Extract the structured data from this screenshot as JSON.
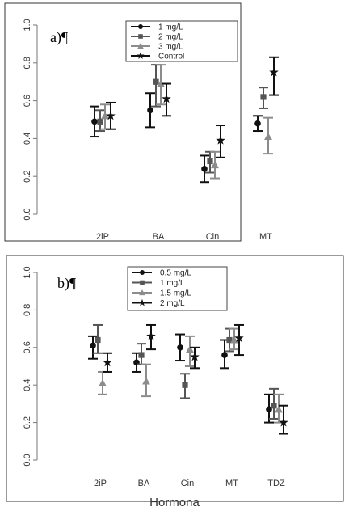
{
  "colors": {
    "black": "#111111",
    "dark_gray": "#555555",
    "light_gray": "#8c8c8c",
    "axis": "#777777",
    "frame": "#333333"
  },
  "chart_data": [
    {
      "type": "scatter",
      "subtype": "error-bar",
      "panel_label": "a)¶",
      "xlabel": "",
      "ylabel": "",
      "ylim": [
        0.0,
        1.0
      ],
      "y_ticks": [
        "0.0",
        "0.2",
        "0.4",
        "0.6",
        "0.8",
        "1.0"
      ],
      "categories": [
        "2iP",
        "BA",
        "Cin",
        "MT"
      ],
      "legend_position": "top-center",
      "grid": false,
      "series": [
        {
          "name": "1 mg/L",
          "marker": "circle",
          "color": "#111111",
          "values": [
            0.49,
            0.55,
            0.24,
            0.48
          ],
          "lower": [
            0.41,
            0.46,
            0.17,
            0.44
          ],
          "upper": [
            0.57,
            0.64,
            0.31,
            0.52
          ]
        },
        {
          "name": "2 mg/L",
          "marker": "square",
          "color": "#555555",
          "values": [
            0.49,
            0.7,
            0.28,
            0.62
          ],
          "lower": [
            0.44,
            0.57,
            0.22,
            0.56
          ],
          "upper": [
            0.55,
            0.79,
            0.33,
            0.67
          ]
        },
        {
          "name": "3 mg/L",
          "marker": "triangle",
          "color": "#8c8c8c",
          "values": [
            0.52,
            0.69,
            0.26,
            0.41
          ],
          "lower": [
            0.45,
            0.58,
            0.19,
            0.32
          ],
          "upper": [
            0.58,
            0.79,
            0.33,
            0.51
          ]
        },
        {
          "name": "Control",
          "marker": "star",
          "color": "#111111",
          "values": [
            0.52,
            0.61,
            0.39,
            0.75
          ],
          "lower": [
            0.45,
            0.52,
            0.3,
            0.63
          ],
          "upper": [
            0.59,
            0.69,
            0.47,
            0.83
          ]
        }
      ]
    },
    {
      "type": "scatter",
      "subtype": "error-bar",
      "panel_label": "b)¶",
      "xlabel": "Hormona",
      "ylabel": "",
      "ylim": [
        0.0,
        1.0
      ],
      "y_ticks": [
        "0.0",
        "0.2",
        "0.4",
        "0.6",
        "0.8",
        "1.0"
      ],
      "categories": [
        "2iP",
        "BA",
        "Cin",
        "MT",
        "TDZ"
      ],
      "legend_position": "top-center",
      "grid": false,
      "series": [
        {
          "name": "0.5 mg/L",
          "marker": "circle",
          "color": "#111111",
          "values": [
            0.61,
            0.52,
            0.6,
            0.56,
            0.27
          ],
          "lower": [
            0.54,
            0.47,
            0.53,
            0.49,
            0.2
          ],
          "upper": [
            0.66,
            0.57,
            0.67,
            0.64,
            0.35
          ]
        },
        {
          "name": "1 mg/L",
          "marker": "square",
          "color": "#555555",
          "values": [
            0.64,
            0.56,
            0.4,
            0.64,
            0.29
          ],
          "lower": [
            0.57,
            0.51,
            0.33,
            0.58,
            0.22
          ],
          "upper": [
            0.72,
            0.62,
            0.46,
            0.7,
            0.38
          ]
        },
        {
          "name": "1.5 mg/L",
          "marker": "triangle",
          "color": "#8c8c8c",
          "values": [
            0.41,
            0.42,
            0.59,
            0.64,
            0.27
          ],
          "lower": [
            0.35,
            0.34,
            0.5,
            0.59,
            0.2
          ],
          "upper": [
            0.47,
            0.51,
            0.66,
            0.7,
            0.35
          ]
        },
        {
          "name": "2 mg/L",
          "marker": "star",
          "color": "#111111",
          "values": [
            0.52,
            0.66,
            0.55,
            0.65,
            0.2
          ],
          "lower": [
            0.47,
            0.59,
            0.49,
            0.56,
            0.14
          ],
          "upper": [
            0.57,
            0.72,
            0.6,
            0.72,
            0.29
          ]
        }
      ]
    }
  ]
}
